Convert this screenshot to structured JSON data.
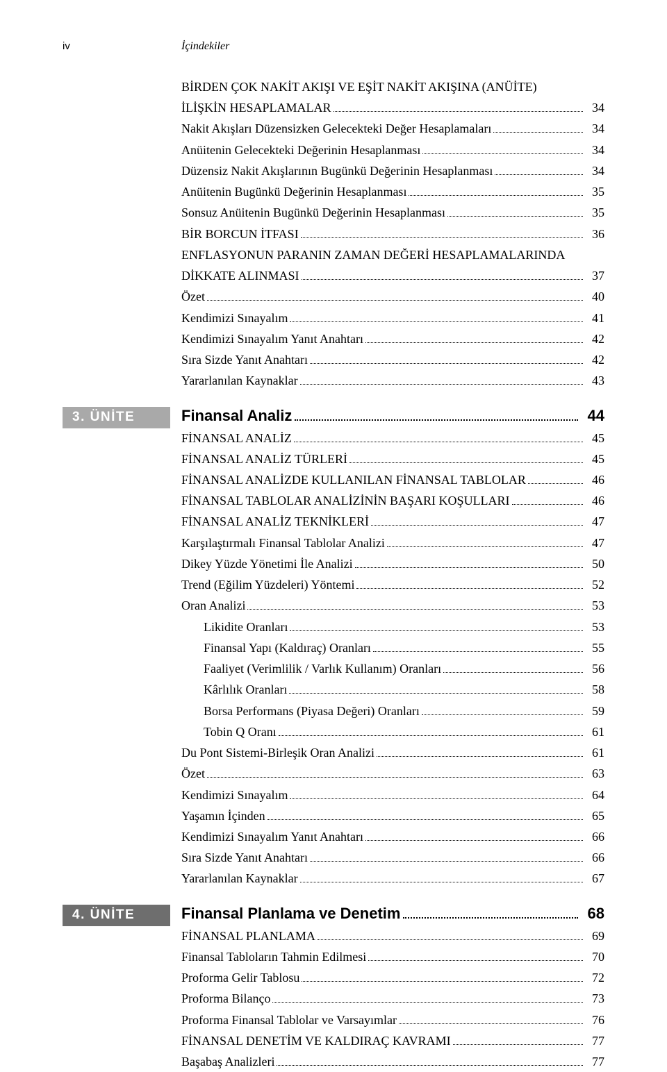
{
  "header": {
    "page_num": "iv",
    "title": "İçindekiler"
  },
  "colors": {
    "unit3_tab": "#a9a9a9",
    "unit4_tab": "#6e6e6e"
  },
  "pre": {
    "lines": [
      {
        "text": "BİRDEN ÇOK NAKİT AKIŞI VE EŞİT NAKİT AKIŞINA (ANÜİTE)",
        "page": "",
        "noline": true
      },
      {
        "text": "İLİŞKİN HESAPLAMALAR",
        "page": "34"
      },
      {
        "text": "Nakit Akışları Düzensizken Gelecekteki Değer Hesaplamaları",
        "page": "34"
      },
      {
        "text": "Anüitenin Gelecekteki Değerinin Hesaplanması",
        "page": "34"
      },
      {
        "text": "Düzensiz Nakit Akışlarının Bugünkü Değerinin Hesaplanması",
        "page": "34"
      },
      {
        "text": "Anüitenin Bugünkü Değerinin Hesaplanması",
        "page": "35"
      },
      {
        "text": "Sonsuz Anüitenin Bugünkü Değerinin Hesaplanması",
        "page": "35"
      },
      {
        "text": "BİR BORCUN İTFASI",
        "page": "36"
      },
      {
        "text": "ENFLASYONUN PARANIN ZAMAN DEĞERİ HESAPLAMALARINDA",
        "page": "",
        "noline": true
      },
      {
        "text": "DİKKATE ALINMASI",
        "page": "36",
        "dummy": true,
        "prev_page": "36"
      },
      {
        "text_fix": "DİKKATE ALINMASI",
        "page": "37"
      },
      {
        "text": "Özet",
        "page": "40"
      },
      {
        "text": "Kendimizi Sınayalım",
        "page": "41"
      },
      {
        "text": "Kendimizi Sınayalım Yanıt Anahtarı",
        "page": "42"
      },
      {
        "text": "Sıra Sizde Yanıt Anahtarı",
        "page": "42"
      },
      {
        "text": "Yararlanılan Kaynaklar",
        "page": "43"
      }
    ]
  },
  "unit3": {
    "tab": "3. ÜNİTE",
    "title": "Finansal Analiz",
    "title_page": "44",
    "lines": [
      {
        "text": "FİNANSAL ANALİZ",
        "page": "45"
      },
      {
        "text": "FİNANSAL ANALİZ TÜRLERİ",
        "page": "45"
      },
      {
        "text": "FİNANSAL ANALİZDE KULLANILAN FİNANSAL TABLOLAR",
        "page": "46"
      },
      {
        "text": "FİNANSAL TABLOLAR ANALİZİNİN BAŞARI KOŞULLARI",
        "page": "46"
      },
      {
        "text": "FİNANSAL ANALİZ TEKNİKLERİ",
        "page": "47"
      },
      {
        "text": "Karşılaştırmalı Finansal Tablolar Analizi",
        "page": "47"
      },
      {
        "text": "Dikey Yüzde Yönetimi İle Analizi",
        "page": "50"
      },
      {
        "text": "Trend (Eğilim Yüzdeleri) Yöntemi",
        "page": "52"
      },
      {
        "text": "Oran Analizi",
        "page": "53"
      },
      {
        "text": "Likidite Oranları",
        "page": "53",
        "indent": 1
      },
      {
        "text": "Finansal Yapı (Kaldıraç) Oranları",
        "page": "55",
        "indent": 1
      },
      {
        "text": "Faaliyet (Verimlilik / Varlık Kullanım) Oranları",
        "page": "56",
        "indent": 1
      },
      {
        "text": "Kârlılık Oranları",
        "page": "58",
        "indent": 1
      },
      {
        "text": "Borsa Performans (Piyasa Değeri) Oranları",
        "page": "59",
        "indent": 1
      },
      {
        "text": "Tobin Q Oranı",
        "page": "61",
        "indent": 1
      },
      {
        "text": "Du Pont Sistemi-Birleşik Oran Analizi",
        "page": "61"
      },
      {
        "text": "Özet",
        "page": "63"
      },
      {
        "text": "Kendimizi Sınayalım",
        "page": "64"
      },
      {
        "text": "Yaşamın İçinden",
        "page": "65"
      },
      {
        "text": "Kendimizi Sınayalım Yanıt Anahtarı",
        "page": "66"
      },
      {
        "text": "Sıra Sizde Yanıt Anahtarı",
        "page": "66"
      },
      {
        "text": "Yararlanılan Kaynaklar",
        "page": "67"
      }
    ]
  },
  "unit4": {
    "tab": "4. ÜNİTE",
    "title": "Finansal Planlama ve Denetim",
    "title_page": "68",
    "lines": [
      {
        "text": "FİNANSAL PLANLAMA",
        "page": "69"
      },
      {
        "text": "Finansal Tabloların Tahmin Edilmesi",
        "page": "70"
      },
      {
        "text": "Proforma Gelir Tablosu",
        "page": "72"
      },
      {
        "text": "Proforma Bilanço",
        "page": "73"
      },
      {
        "text": "Proforma Finansal Tablolar ve Varsayımlar",
        "page": "76"
      },
      {
        "text": "FİNANSAL DENETİM VE KALDIRAÇ KAVRAMI",
        "page": "77"
      },
      {
        "text": "Başabaş Analizleri",
        "page": "77"
      }
    ]
  }
}
